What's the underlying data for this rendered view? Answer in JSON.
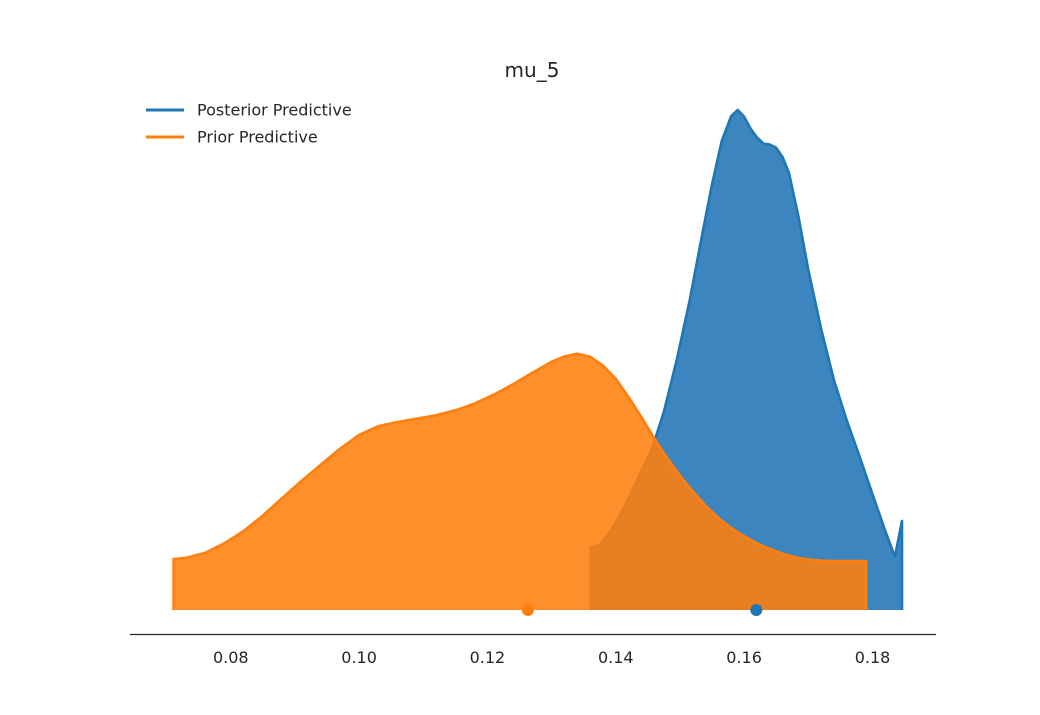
{
  "chart_data": {
    "type": "area",
    "title": "mu_5",
    "xlabel": "",
    "ylabel": "",
    "xlim": [
      0.0643,
      0.1899
    ],
    "xticks": [
      "0.08",
      "0.10",
      "0.12",
      "0.14",
      "0.16",
      "0.18"
    ],
    "grid": false,
    "legend_position": "top-left",
    "series": [
      {
        "name": "Posterior Predictive",
        "color": "#1f77b4",
        "fill_color": "#2b7bba",
        "point_estimate": 0.1619,
        "x": [
          0.1361,
          0.1375,
          0.1395,
          0.1415,
          0.1435,
          0.1455,
          0.1475,
          0.1495,
          0.1515,
          0.1535,
          0.155,
          0.1565,
          0.158,
          0.159,
          0.16,
          0.161,
          0.162,
          0.163,
          0.164,
          0.165,
          0.166,
          0.167,
          0.1685,
          0.17,
          0.172,
          0.174,
          0.176,
          0.178,
          0.18,
          0.182,
          0.1835,
          0.1846
        ],
        "density": [
          0.222,
          0.231,
          0.291,
          0.376,
          0.471,
          0.566,
          0.708,
          0.892,
          1.104,
          1.344,
          1.519,
          1.674,
          1.764,
          1.785,
          1.761,
          1.719,
          1.687,
          1.665,
          1.662,
          1.65,
          1.617,
          1.56,
          1.4,
          1.214,
          1.004,
          0.82,
          0.676,
          0.548,
          0.413,
          0.282,
          0.19,
          0.318
        ]
      },
      {
        "name": "Prior Predictive",
        "color": "#ff7f0e",
        "fill_color": "#ff7f0e",
        "point_estimate": 0.1263,
        "x": [
          0.0711,
          0.073,
          0.076,
          0.079,
          0.082,
          0.085,
          0.088,
          0.091,
          0.094,
          0.097,
          0.1,
          0.103,
          0.106,
          0.109,
          0.112,
          0.115,
          0.118,
          0.121,
          0.124,
          0.127,
          0.13,
          0.132,
          0.134,
          0.136,
          0.138,
          0.14,
          0.142,
          0.144,
          0.146,
          0.148,
          0.15,
          0.152,
          0.154,
          0.156,
          0.158,
          0.16,
          0.162,
          0.164,
          0.166,
          0.168,
          0.17,
          0.172,
          0.174,
          0.176,
          0.179
        ],
        "density": [
          0.182,
          0.186,
          0.204,
          0.238,
          0.282,
          0.337,
          0.399,
          0.46,
          0.518,
          0.575,
          0.625,
          0.656,
          0.671,
          0.683,
          0.695,
          0.713,
          0.737,
          0.769,
          0.806,
          0.847,
          0.886,
          0.905,
          0.915,
          0.904,
          0.873,
          0.825,
          0.76,
          0.688,
          0.613,
          0.543,
          0.479,
          0.423,
          0.372,
          0.328,
          0.292,
          0.263,
          0.238,
          0.218,
          0.201,
          0.188,
          0.18,
          0.176,
          0.175,
          0.175,
          0.175
        ]
      }
    ]
  }
}
